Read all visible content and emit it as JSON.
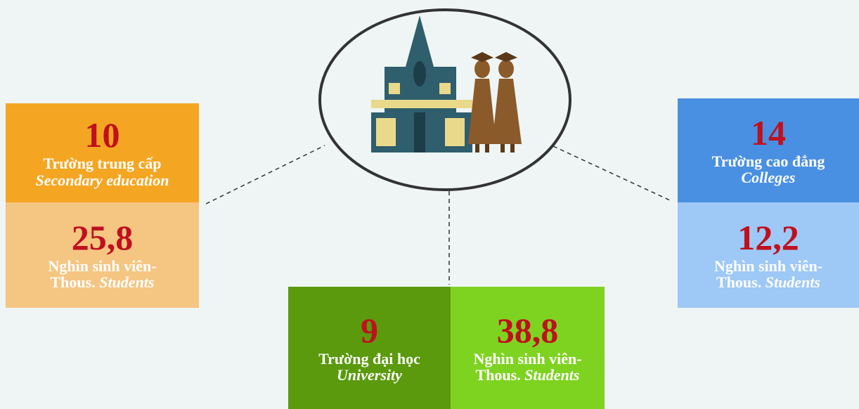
{
  "secondary": {
    "count": "10",
    "type": "Trường trung cấp",
    "type_en": "Secondary education",
    "students": "25,8",
    "unit": "Nghìn sinh viên-",
    "unit_en": "Thous.",
    "unit_students": "Students"
  },
  "university": {
    "count": "9",
    "type": "Trường đại học",
    "type_en": "University",
    "students": "38,8",
    "unit": "Nghìn sinh viên-",
    "unit_en": "Thous.",
    "unit_students": "Students"
  },
  "colleges": {
    "count": "14",
    "type": "Trường cao đẳng",
    "type_en": "Colleges",
    "students": "12,2",
    "unit": "Nghìn sinh viên-",
    "unit_en": "Thous.",
    "unit_students": "Students"
  }
}
